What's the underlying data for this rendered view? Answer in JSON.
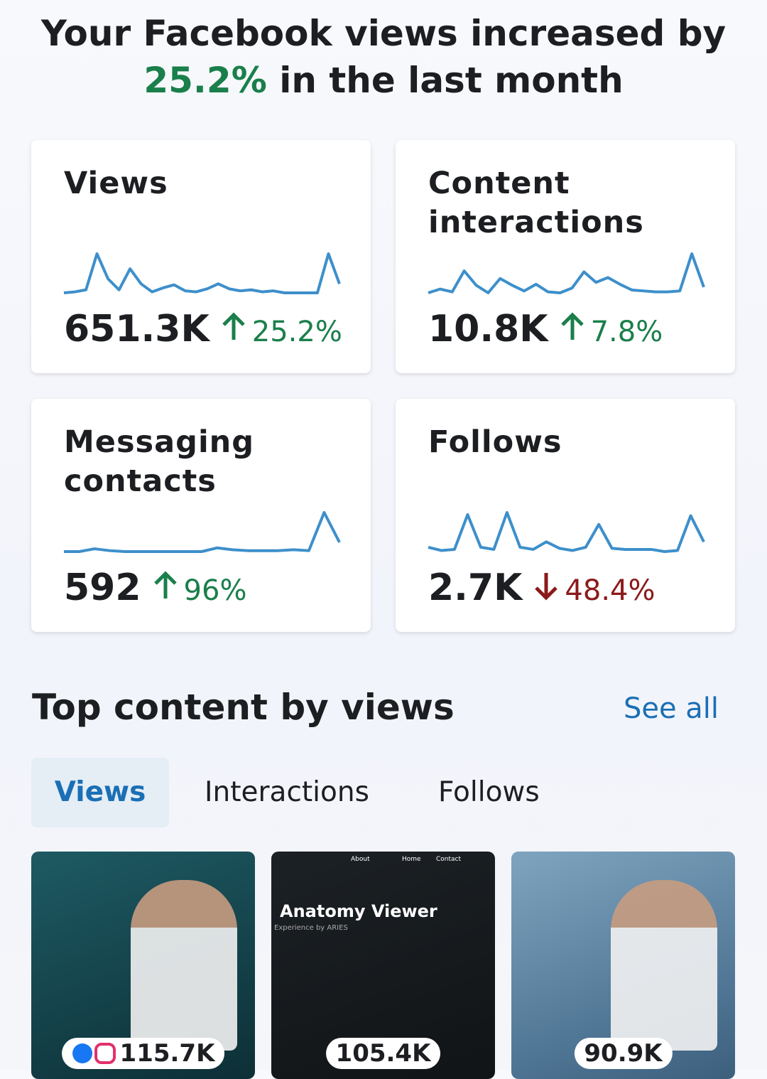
{
  "header": {
    "title_start": "Your Facebook views increased by",
    "title_highlight": "25.2%",
    "title_end": "in the last month"
  },
  "cards": [
    {
      "title": "Views",
      "value": "651.3K",
      "change": "25.2%",
      "direction": "up",
      "trend": [
        12,
        14,
        18,
        90,
        40,
        18,
        60,
        30,
        14,
        22,
        28,
        16,
        14,
        20,
        30,
        20,
        16,
        18,
        14,
        16,
        12,
        12,
        12,
        12,
        90,
        30
      ]
    },
    {
      "title": "Content interactions",
      "value": "10.8K",
      "change": "7.8%",
      "direction": "up",
      "trend": [
        14,
        22,
        16,
        60,
        30,
        14,
        44,
        30,
        18,
        32,
        16,
        14,
        24,
        58,
        36,
        46,
        32,
        20,
        18,
        16,
        16,
        18,
        96,
        26
      ]
    },
    {
      "title": "Messaging contacts",
      "value": "592",
      "change": "96%",
      "direction": "up",
      "trend": [
        10,
        10,
        16,
        12,
        10,
        10,
        10,
        10,
        10,
        10,
        18,
        14,
        12,
        12,
        12,
        14,
        12,
        94,
        30
      ]
    },
    {
      "title": "Follows",
      "value": "2.7K",
      "change": "48.4%",
      "direction": "down",
      "trend": [
        20,
        14,
        16,
        80,
        20,
        16,
        84,
        20,
        16,
        30,
        18,
        14,
        20,
        62,
        18,
        16,
        16,
        16,
        12,
        14,
        78,
        30
      ]
    }
  ],
  "section": {
    "title": "Top content by views",
    "link": "See all"
  },
  "tabs": {
    "items": [
      "Views",
      "Interactions",
      "Follows"
    ],
    "active": 0
  },
  "posts": [
    {
      "count": "115.7K",
      "texts": []
    },
    {
      "count": "105.4K",
      "texts": [
        "About",
        "Home",
        "Contact",
        "Anatomy Viewer",
        "Experience by ARIES"
      ]
    },
    {
      "count": "90.9K",
      "texts": []
    }
  ]
}
